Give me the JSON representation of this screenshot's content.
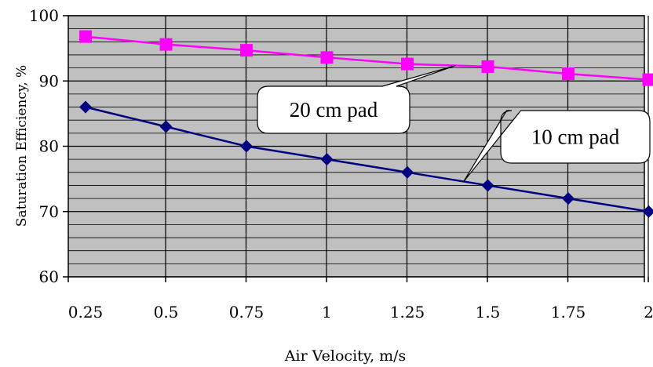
{
  "chart_data": {
    "type": "line",
    "x": [
      0.25,
      0.5,
      0.75,
      1,
      1.25,
      1.5,
      1.75,
      2
    ],
    "x_tick_labels": [
      "0.25",
      "0.5",
      "0.75",
      "1",
      "1.25",
      "1.5",
      "1.75",
      "2"
    ],
    "xlabel": "Air Velocity, m/s",
    "ylabel": "Saturation Efficiency, %",
    "ylim": [
      60,
      100
    ],
    "y_ticks": [
      60,
      70,
      80,
      90,
      100
    ],
    "y_tick_labels": [
      "60",
      "70",
      "80",
      "90",
      "100"
    ],
    "grid": true,
    "plot_background": "#c0c0c0",
    "series": [
      {
        "name": "20 cm pad",
        "color": "#ff00ff",
        "marker": "square",
        "values": [
          96.8,
          95.6,
          94.7,
          93.6,
          92.6,
          92.2,
          91.1,
          90.2
        ]
      },
      {
        "name": "10 cm pad",
        "color": "#000080",
        "marker": "diamond",
        "values": [
          86,
          83,
          80,
          78,
          76,
          74,
          72,
          70
        ]
      }
    ],
    "annotations": [
      {
        "text": "20 cm pad",
        "points_to_series": "20 cm pad"
      },
      {
        "text": "10 cm pad",
        "points_to_series": "10 cm pad"
      }
    ]
  }
}
